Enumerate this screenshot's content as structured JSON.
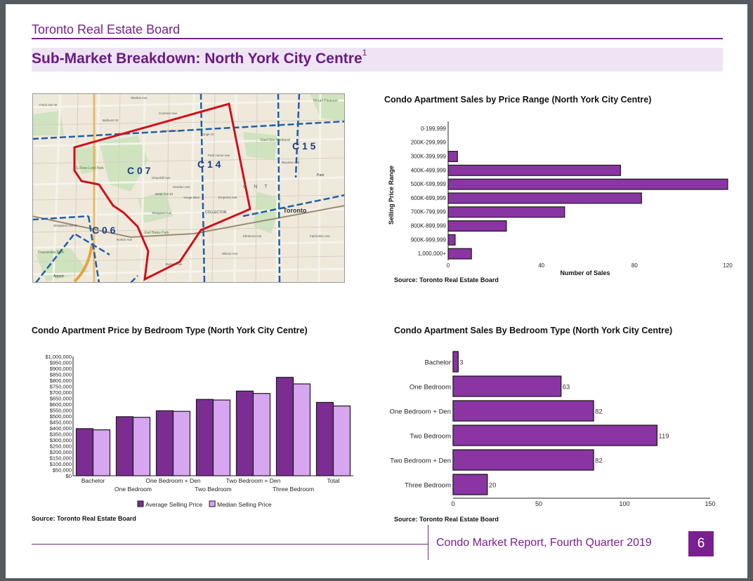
{
  "header": {
    "org": "Toronto Real Estate Board",
    "title": "Sub-Market Breakdown: North York City Centre",
    "title_sup": "1"
  },
  "map": {
    "districts": [
      "C 0 7",
      "C 1 4",
      "C 1 5",
      "C 0 6"
    ],
    "place_label": "Toronto",
    "street_labels": [
      "Finch Ave W",
      "Sheppard Ave",
      "Yonge St",
      "Bayview Ave",
      "Bathurst St",
      "Steeles Ave",
      "Cummer Ave",
      "Empress Ave",
      "Park Home Ave",
      "Hendon Ave",
      "Churchill Ave",
      "Kenneth Ave",
      "Wilson Ave",
      "Elmhurst Ave",
      "Burnett Ave",
      "Norton Ave",
      "Betty Ann Dr",
      "Sheppard Ave W",
      "Yonge Blvd",
      "Fairholme Ave"
    ],
    "park_labels": [
      "Earl Bales Park",
      "G Ross Lord Park",
      "East Don Parkland",
      "Downsview Park",
      "Mount Pleasant"
    ],
    "other_labels": [
      "O N T",
      "COLLECTOR",
      "Airport",
      "Park"
    ],
    "colors": {
      "boundary": "#d0101a",
      "district_line": "#1f5fa8",
      "highway": "#e8a33a"
    }
  },
  "chart_price_range": {
    "title": "Condo Apartment Sales by Price Range (North York City Centre)",
    "source": "Source: Toronto Real Estate Board",
    "chart_data": {
      "type": "bar",
      "orientation": "horizontal",
      "categories": [
        "0-199,999",
        "200K-299,999",
        "300K-399,999",
        "400K-499,999",
        "500K-599,999",
        "600K-699,999",
        "700K-799,999",
        "800K-899,999",
        "900K-999,999",
        "1,000,000+"
      ],
      "values": [
        0,
        0,
        4,
        74,
        120,
        83,
        50,
        25,
        3,
        10
      ],
      "xlabel": "Number of Sales",
      "ylabel": "Selling Price Range",
      "xticks": [
        "0",
        "40",
        "80",
        "120"
      ],
      "xlim": [
        0,
        120
      ],
      "color": "#8a35a3"
    }
  },
  "chart_price_bedroom": {
    "title": "Condo Apartment Price by Bedroom Type (North York City Centre)",
    "source": "Source: Toronto Real Estate Board",
    "chart_data": {
      "type": "bar",
      "categories": [
        "Bachelor",
        "One Bedroom",
        "One Bedroom + Den",
        "Two Bedroom",
        "Two Bedroom + Den",
        "Three Bedroom",
        "Total"
      ],
      "series": [
        {
          "name": "Average Selling Price",
          "values": [
            395000,
            495000,
            545000,
            640000,
            710000,
            825000,
            615000
          ],
          "color": "#7b2d92"
        },
        {
          "name": "Median Selling Price",
          "values": [
            385000,
            490000,
            540000,
            635000,
            690000,
            770000,
            585000
          ],
          "color": "#d6a6f0"
        }
      ],
      "yticks": [
        "$0",
        "$50,000",
        "$100,000",
        "$150,000",
        "$200,000",
        "$250,000",
        "$300,000",
        "$350,000",
        "$400,000",
        "$450,000",
        "$500,000",
        "$550,000",
        "$600,000",
        "$650,000",
        "$700,000",
        "$750,000",
        "$800,000",
        "$850,000",
        "$900,000",
        "$950,000",
        "$1,000,000"
      ],
      "ylim": [
        0,
        1000000
      ],
      "legend": "bottom"
    }
  },
  "chart_sales_bedroom": {
    "title": "Condo Apartment Sales By Bedroom Type (North York City Centre)",
    "source": "Source: Toronto Real Estate Board",
    "chart_data": {
      "type": "bar",
      "orientation": "horizontal",
      "categories": [
        "Bachelor",
        "One Bedroom",
        "One Bedroom + Den",
        "Two Bedroom",
        "Two Bedroom + Den",
        "Three Bedroom"
      ],
      "values": [
        3,
        63,
        82,
        119,
        82,
        20
      ],
      "value_labels": [
        "3",
        "63",
        "82",
        "119",
        "82",
        "20"
      ],
      "xticks": [
        "0",
        "50",
        "100",
        "150"
      ],
      "xlim": [
        0,
        150
      ],
      "color": "#8a35a3"
    }
  },
  "footer": {
    "report": "Condo Market Report, Fourth Quarter 2019",
    "page": "6"
  }
}
